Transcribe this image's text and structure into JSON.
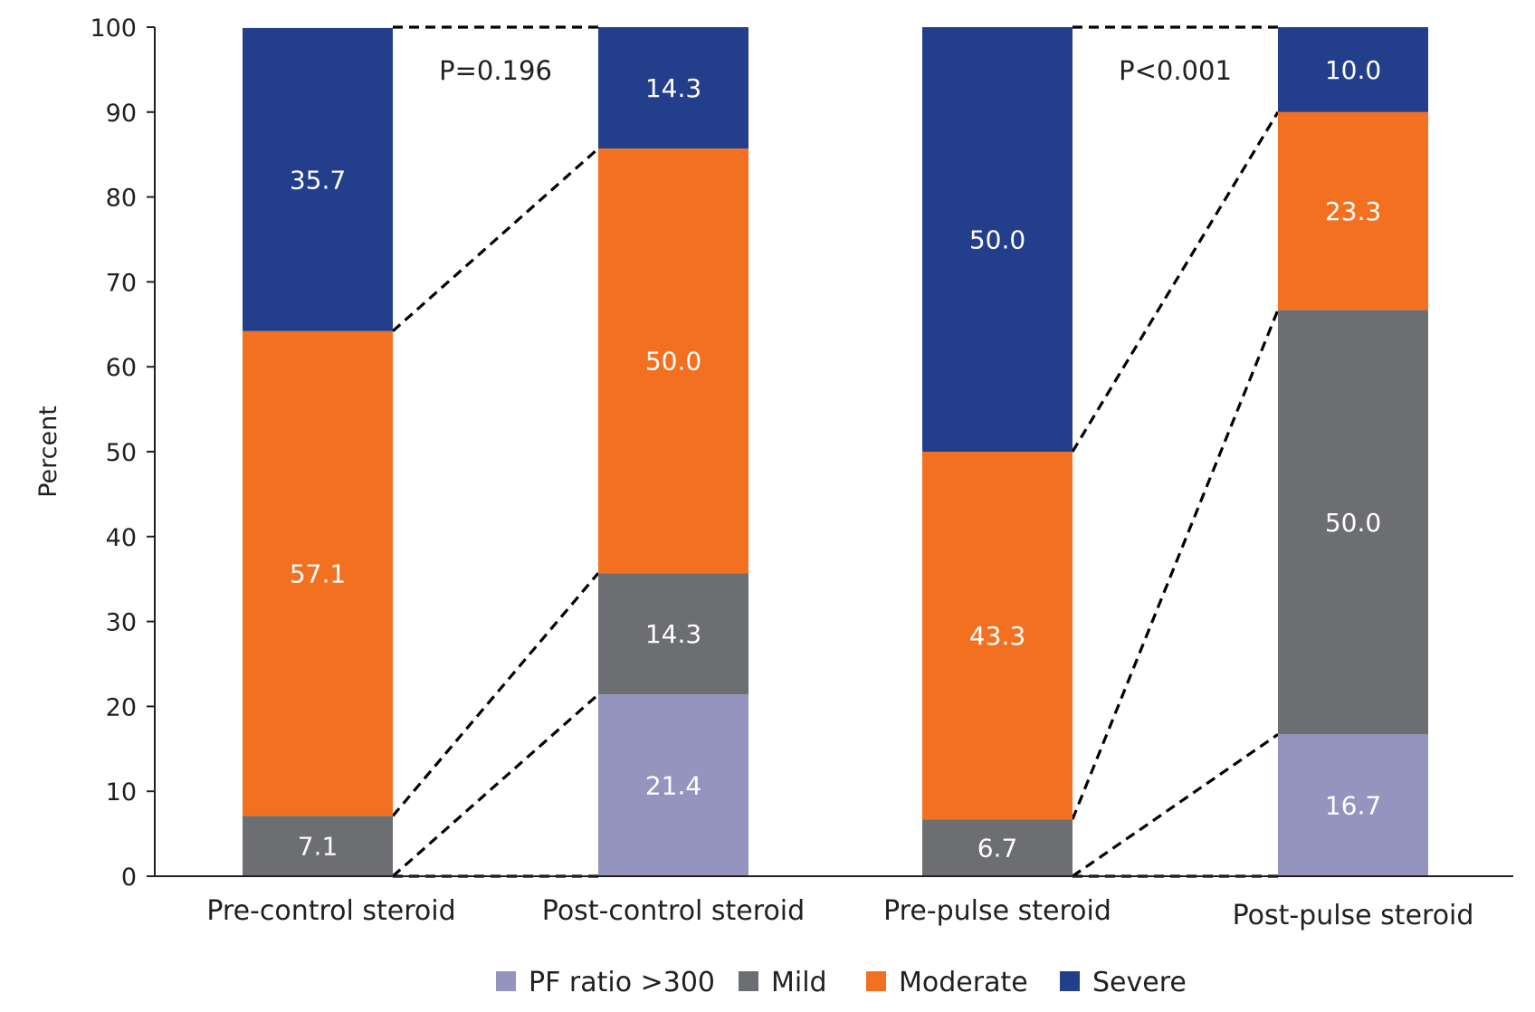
{
  "chart_data": {
    "type": "bar",
    "stacked": true,
    "title": "",
    "xlabel": "",
    "ylabel": "Percent",
    "ylim": [
      0,
      100
    ],
    "yticks": [
      0,
      10,
      20,
      30,
      40,
      50,
      60,
      70,
      80,
      90,
      100
    ],
    "grid": false,
    "legend_position": "bottom",
    "categories": [
      "Pre-control steroid",
      "Post-control steroid",
      "Pre-pulse steroid",
      "Post-pulse steroid"
    ],
    "series": [
      {
        "name": "PF ratio >300",
        "color": "#9594be",
        "values": [
          0,
          21.4,
          0,
          16.7
        ],
        "labels": [
          "",
          "21.4",
          "",
          "16.7"
        ]
      },
      {
        "name": "Mild",
        "color": "#6d6e71",
        "values": [
          7.1,
          14.3,
          6.7,
          50.0
        ],
        "labels": [
          "7.1",
          "14.3",
          "6.7",
          "50.0"
        ]
      },
      {
        "name": "Moderate",
        "color": "#f37021",
        "values": [
          57.1,
          50.0,
          43.3,
          23.3
        ],
        "labels": [
          "57.1",
          "50.0",
          "43.3",
          "23.3"
        ]
      },
      {
        "name": "Severe",
        "color": "#233e8b",
        "values": [
          35.7,
          14.3,
          50.0,
          10.0
        ],
        "labels": [
          "35.7",
          "14.3",
          "50.0",
          "10.0"
        ]
      }
    ],
    "annotations": [
      {
        "text": "P=0.196",
        "between": [
          0,
          1
        ]
      },
      {
        "text": "P<0.001",
        "between": [
          2,
          3
        ]
      }
    ]
  }
}
